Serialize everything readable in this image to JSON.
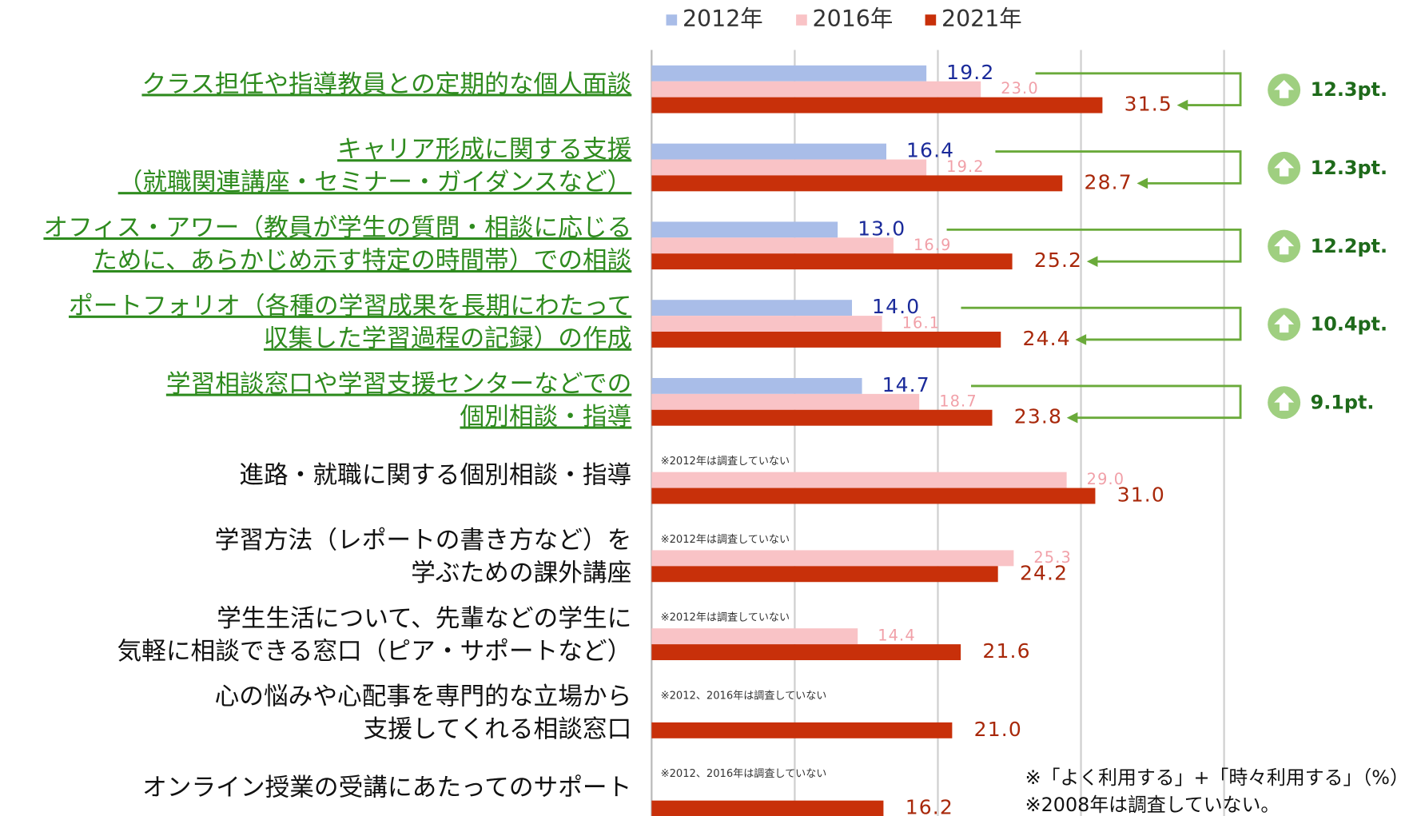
{
  "chart_data": {
    "type": "bar",
    "orientation": "horizontal",
    "categories": [
      [
        "クラス担任や指導教員との定期的な個人面談"
      ],
      [
        "キャリア形成に関する支援",
        "（就職関連講座・セミナー・ガイダンスなど）"
      ],
      [
        "オフィス・アワー（教員が学生の質問・相談に応じる",
        "ために、あらかじめ示す特定の時間帯）での相談"
      ],
      [
        "ポートフォリオ（各種の学習成果を長期にわたって",
        "収集した学習過程の記録）の作成"
      ],
      [
        "学習相談窓口や学習支援センターなどでの",
        "個別相談・指導"
      ],
      [
        "進路・就職に関する個別相談・指導"
      ],
      [
        "学習方法（レポートの書き方など）を",
        "学ぶための課外講座"
      ],
      [
        "学生生活について、先輩などの学生に",
        "気軽に相談できる窓口（ピア・サポートなど）"
      ],
      [
        "心の悩みや心配事を専門的な立場から",
        "支援してくれる相談窓口"
      ],
      [
        "オンライン授業の受講にあたってのサポート"
      ]
    ],
    "highlight": [
      true,
      true,
      true,
      true,
      true,
      false,
      false,
      false,
      false,
      false
    ],
    "highlight_color": "#2e8b1e",
    "series": [
      {
        "name": "2012年",
        "color": "#a9bde8",
        "label_color": "#1a2a9a",
        "values": [
          19.2,
          16.4,
          13.0,
          14.0,
          14.7,
          null,
          null,
          null,
          null,
          null
        ],
        "value_labels": [
          "19.2",
          "16.4",
          "13.0",
          "14.0",
          "14.7",
          null,
          null,
          null,
          null,
          null
        ]
      },
      {
        "name": "2016年",
        "color": "#f9c3c6",
        "label_color": "#f1a0a8",
        "values": [
          23.0,
          19.2,
          16.9,
          16.1,
          18.7,
          29.0,
          25.3,
          14.4,
          null,
          null
        ],
        "value_labels": [
          "23.0",
          "19.2",
          "16.9",
          "16.1",
          "18.7",
          "29.0",
          "25.3",
          "14.4",
          null,
          null
        ]
      },
      {
        "name": "2021年",
        "color": "#c8300a",
        "label_color": "#a8280a",
        "values": [
          31.5,
          28.7,
          25.2,
          24.4,
          23.8,
          31.0,
          24.2,
          21.6,
          21.0,
          16.2
        ],
        "value_labels": [
          "31.5",
          "28.7",
          "25.2",
          "24.4",
          "23.8",
          "31.0",
          "24.2",
          "21.6",
          "21.0",
          "16.2"
        ]
      }
    ],
    "increase": {
      "color": "#6aaa3a",
      "values": [
        12.3,
        12.3,
        12.2,
        10.4,
        9.1
      ],
      "value_labels": [
        "12.3pt.",
        "12.3pt.",
        "12.2pt.",
        "10.4pt.",
        "9.1pt."
      ]
    },
    "notes": [
      null,
      null,
      null,
      null,
      null,
      "※2012年は調査していない",
      "※2012年は調査していない",
      "※2012年は調査していない",
      "※2012、2016年は調査していない",
      "※2012、2016年は調査していない"
    ],
    "xlim": [
      0,
      40
    ],
    "xticks": [
      0,
      10,
      20,
      30,
      40
    ],
    "grid": true,
    "legend": "top",
    "footnotes": [
      "※「よく利用する」+「時々利用する」（%）",
      "※2008年は調査していない。"
    ]
  }
}
